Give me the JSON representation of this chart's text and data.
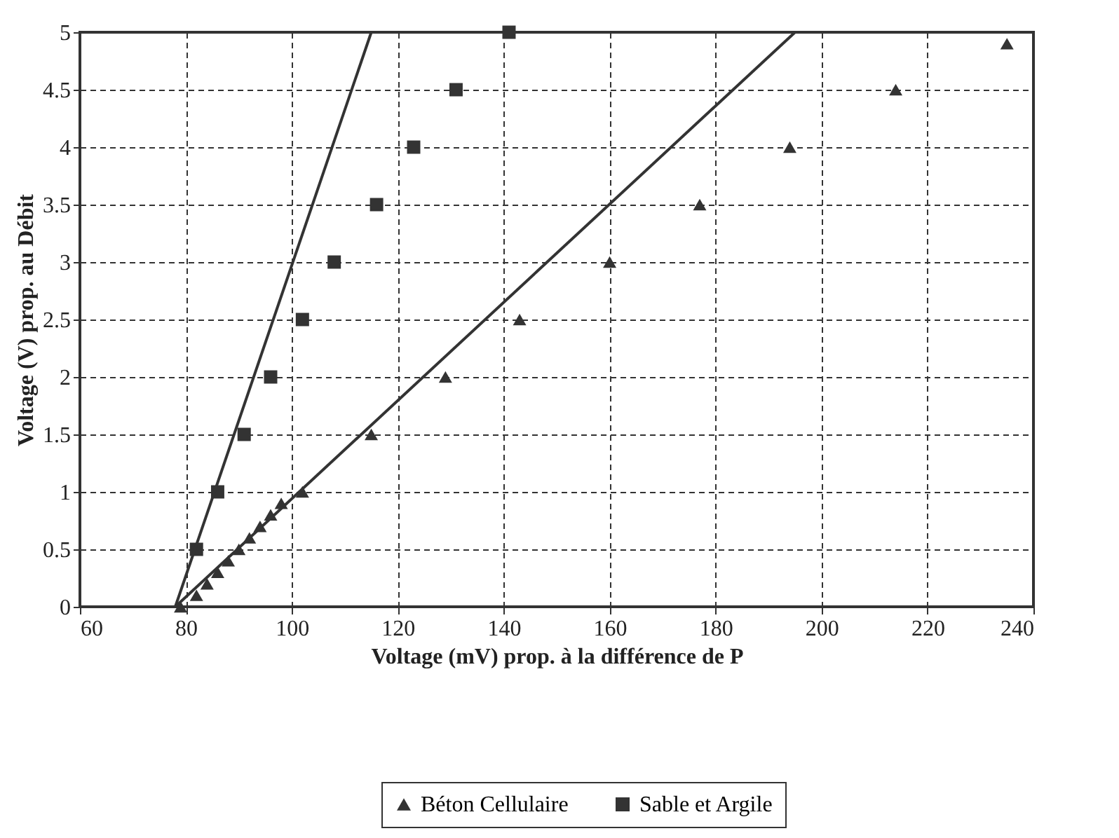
{
  "chart_data": {
    "type": "scatter",
    "xlabel": "Voltage (mV) prop. à la différence de P",
    "ylabel": "Voltage (V) prop. au Débit",
    "xlim": [
      60,
      240
    ],
    "xticks": [
      60,
      80,
      100,
      120,
      140,
      160,
      180,
      200,
      220,
      240
    ],
    "ylim": [
      0,
      5
    ],
    "yticks": [
      0,
      0.5,
      1,
      1.5,
      2,
      2.5,
      3,
      3.5,
      4,
      4.5,
      5
    ],
    "grid": true,
    "legend": "bottom",
    "series": [
      {
        "name": "Béton Cellulaire",
        "color": "#333333",
        "marker": "triangle",
        "x": [
          79,
          82,
          84,
          86,
          88,
          90,
          92,
          94,
          96,
          98,
          102,
          115,
          129,
          143,
          160,
          177,
          194,
          214,
          235
        ],
        "values": [
          0,
          0.1,
          0.2,
          0.3,
          0.4,
          0.5,
          0.6,
          0.7,
          0.8,
          0.9,
          1.0,
          1.5,
          2,
          2.5,
          3,
          3.5,
          4,
          4.5,
          4.9
        ]
      },
      {
        "name": "Sable et Argile",
        "color": "#333333",
        "marker": "square",
        "x": [
          82,
          86,
          91,
          96,
          102,
          108,
          116,
          123,
          131,
          141
        ],
        "values": [
          0.5,
          1,
          1.5,
          2,
          2.5,
          3,
          3.5,
          4,
          4.5,
          5
        ]
      },
      {
        "type": "line",
        "color": "#333333",
        "line_style": "solid",
        "x": [
          78,
          115
        ],
        "values": [
          0,
          5
        ]
      },
      {
        "type": "line",
        "color": "#333333",
        "line_style": "solid",
        "x": [
          78,
          195
        ],
        "values": [
          0,
          5
        ]
      }
    ]
  }
}
